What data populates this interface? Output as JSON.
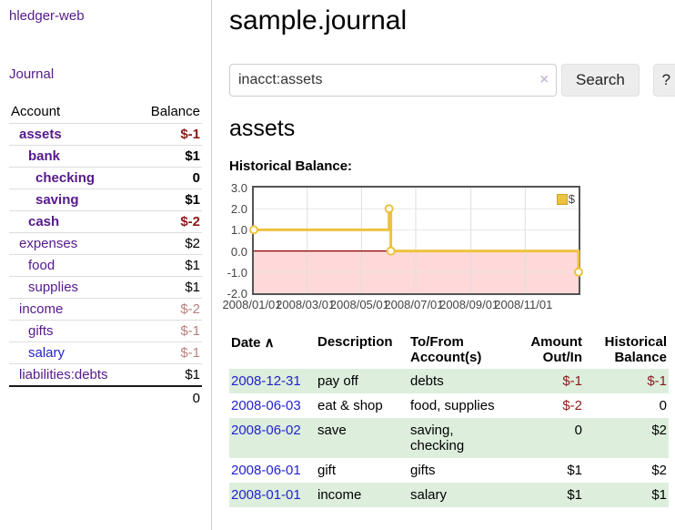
{
  "sidebar": {
    "app_title": "hledger-web",
    "journal_link": "Journal",
    "accounts_table": {
      "headers": {
        "account": "Account",
        "balance": "Balance"
      },
      "rows": [
        {
          "name": "assets",
          "balance": "$-1",
          "indent": 1,
          "bold": true,
          "neg": true
        },
        {
          "name": "bank",
          "balance": "$1",
          "indent": 2,
          "bold": true
        },
        {
          "name": "checking",
          "balance": "0",
          "indent": 3,
          "bold": true
        },
        {
          "name": "saving",
          "balance": "$1",
          "indent": 3,
          "bold": true
        },
        {
          "name": "cash",
          "balance": "$-2",
          "indent": 2,
          "bold": true,
          "neg": true
        },
        {
          "name": "expenses",
          "balance": "$2",
          "indent": 1
        },
        {
          "name": "food",
          "balance": "$1",
          "indent": 2
        },
        {
          "name": "supplies",
          "balance": "$1",
          "indent": 2
        },
        {
          "name": "income",
          "balance": "$-2",
          "indent": 1,
          "muted": true
        },
        {
          "name": "gifts",
          "balance": "$-1",
          "indent": 2,
          "muted": true
        },
        {
          "name": "salary",
          "balance": "$-1",
          "indent": 2,
          "muted": true,
          "blue": true
        },
        {
          "name": "liabilities:debts",
          "balance": "$1",
          "indent": 1
        }
      ],
      "total": "0"
    }
  },
  "header": {
    "title": "sample.journal"
  },
  "search": {
    "value": "inacct:assets",
    "placeholder": "",
    "button_label": "Search",
    "help_label": "?"
  },
  "main": {
    "account_heading": "assets",
    "chart_label": "Historical Balance:"
  },
  "icons": {
    "clear_x": "×",
    "sort_asc": "∧"
  },
  "chart_data": {
    "type": "line",
    "style": "steps",
    "title": "Historical Balance",
    "series": [
      {
        "name": "$",
        "color": "#edc240",
        "points": [
          [
            "2008-01-01",
            1
          ],
          [
            "2008-06-01",
            2
          ],
          [
            "2008-06-03",
            0
          ],
          [
            "2008-12-31",
            -1
          ]
        ]
      }
    ],
    "x_ticks": [
      "2008/01/01",
      "2008/03/01",
      "2008/05/01",
      "2008/07/01",
      "2008/09/01",
      "2008/11/01"
    ],
    "y_ticks": [
      3.0,
      2.0,
      1.0,
      0.0,
      -1.0,
      -2.0
    ],
    "xlim": [
      "2008-01-01",
      "2008-12-31"
    ],
    "ylim": [
      -2,
      3
    ],
    "grid": true,
    "legend_position": "top-right",
    "negative_fill": "#ffd9d9",
    "zero_line_color": "#8b0000"
  },
  "register_table": {
    "headers": [
      {
        "line1": "Date",
        "sort_icon": true
      },
      {
        "line1": "Description"
      },
      {
        "line1": "To/From",
        "line2": "Account(s)"
      },
      {
        "line1": "Amount",
        "line2": "Out/In",
        "align": "right"
      },
      {
        "line1": "Historical",
        "line2": "Balance",
        "align": "right"
      }
    ],
    "rows": [
      {
        "date": "2008-12-31",
        "description": "pay off",
        "accounts": "debts",
        "amount": "$-1",
        "amount_neg": true,
        "balance": "$-1",
        "balance_neg": true
      },
      {
        "date": "2008-06-03",
        "description": "eat & shop",
        "accounts": "food, supplies",
        "amount": "$-2",
        "amount_neg": true,
        "balance": "0"
      },
      {
        "date": "2008-06-02",
        "description": "save",
        "accounts": "saving, checking",
        "amount": "0",
        "balance": "$2"
      },
      {
        "date": "2008-06-01",
        "description": "gift",
        "accounts": "gifts",
        "amount": "$1",
        "balance": "$2"
      },
      {
        "date": "2008-01-01",
        "description": "income",
        "accounts": "salary",
        "amount": "$1",
        "balance": "$1"
      }
    ]
  },
  "colors": {
    "link_purple": "#551a8b",
    "link_blue": "#2323cc",
    "negative_red": "#8b1a1a",
    "muted_negative": "#b97f7f",
    "row_stripe_green": "#ddeedd",
    "chart_yellow": "#edc240",
    "chart_negative_pink": "#ffd9d9",
    "chart_zero_line": "#8b0000",
    "chart_frame": "#545454",
    "button_gray": "#ededed"
  }
}
